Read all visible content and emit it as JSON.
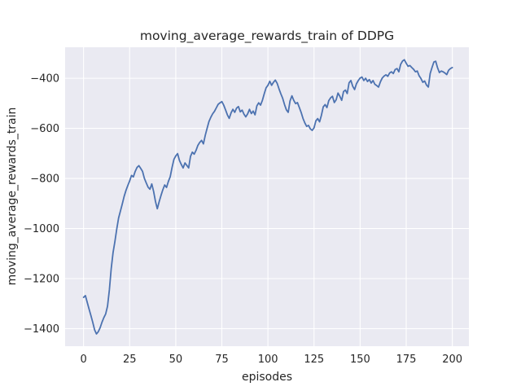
{
  "chart_data": {
    "type": "line",
    "title": "moving_average_rewards_train of DDPG",
    "xlabel": "episodes",
    "ylabel": "moving_average_rewards_train",
    "grid": true,
    "legend_position": "none",
    "xlim": [
      -10,
      209
    ],
    "ylim": [
      -1470,
      -276
    ],
    "xticks": [
      0,
      25,
      50,
      75,
      100,
      125,
      150,
      175,
      200
    ],
    "xtick_labels": [
      "0",
      "25",
      "50",
      "75",
      "100",
      "125",
      "150",
      "175",
      "200"
    ],
    "yticks": [
      -400,
      -600,
      -800,
      -1000,
      -1200,
      -1400
    ],
    "ytick_labels": [
      "−400",
      "−600",
      "−800",
      "−1000",
      "−1200",
      "−1400"
    ],
    "style": {
      "figure_background": "#ffffff",
      "axes_background": "#eaeaf2",
      "grid_color": "#ffffff",
      "line_color": "#4c72b0",
      "text_color": "#262626"
    },
    "series": [
      {
        "name": "moving_average_rewards_train",
        "color": "#4c72b0",
        "x_start": 0,
        "x_step": 1,
        "values": [
          -1275,
          -1268,
          -1295,
          -1322,
          -1348,
          -1375,
          -1405,
          -1421,
          -1412,
          -1396,
          -1374,
          -1356,
          -1341,
          -1310,
          -1245,
          -1160,
          -1096,
          -1052,
          -1002,
          -958,
          -930,
          -902,
          -872,
          -848,
          -828,
          -810,
          -788,
          -794,
          -772,
          -756,
          -749,
          -760,
          -772,
          -800,
          -818,
          -835,
          -843,
          -822,
          -852,
          -892,
          -921,
          -893,
          -868,
          -845,
          -826,
          -836,
          -812,
          -793,
          -756,
          -724,
          -710,
          -701,
          -728,
          -744,
          -758,
          -738,
          -748,
          -758,
          -712,
          -695,
          -703,
          -688,
          -668,
          -656,
          -648,
          -662,
          -628,
          -600,
          -573,
          -556,
          -542,
          -532,
          -518,
          -504,
          -498,
          -493,
          -507,
          -526,
          -546,
          -560,
          -538,
          -524,
          -536,
          -519,
          -513,
          -534,
          -527,
          -543,
          -554,
          -542,
          -524,
          -541,
          -531,
          -546,
          -510,
          -498,
          -507,
          -488,
          -462,
          -438,
          -428,
          -412,
          -428,
          -416,
          -407,
          -420,
          -442,
          -462,
          -480,
          -505,
          -526,
          -536,
          -490,
          -470,
          -488,
          -501,
          -497,
          -516,
          -536,
          -560,
          -578,
          -592,
          -588,
          -602,
          -608,
          -598,
          -570,
          -561,
          -574,
          -548,
          -514,
          -505,
          -517,
          -489,
          -478,
          -472,
          -497,
          -486,
          -459,
          -472,
          -488,
          -453,
          -447,
          -461,
          -418,
          -409,
          -432,
          -445,
          -422,
          -409,
          -399,
          -395,
          -409,
          -400,
          -413,
          -405,
          -419,
          -409,
          -424,
          -429,
          -435,
          -414,
          -399,
          -391,
          -386,
          -392,
          -379,
          -374,
          -381,
          -365,
          -361,
          -374,
          -344,
          -331,
          -326,
          -340,
          -352,
          -349,
          -357,
          -364,
          -374,
          -371,
          -390,
          -401,
          -416,
          -411,
          -427,
          -435,
          -381,
          -357,
          -335,
          -332,
          -358,
          -377,
          -371,
          -374,
          -379,
          -385,
          -368,
          -361,
          -357
        ]
      }
    ]
  }
}
